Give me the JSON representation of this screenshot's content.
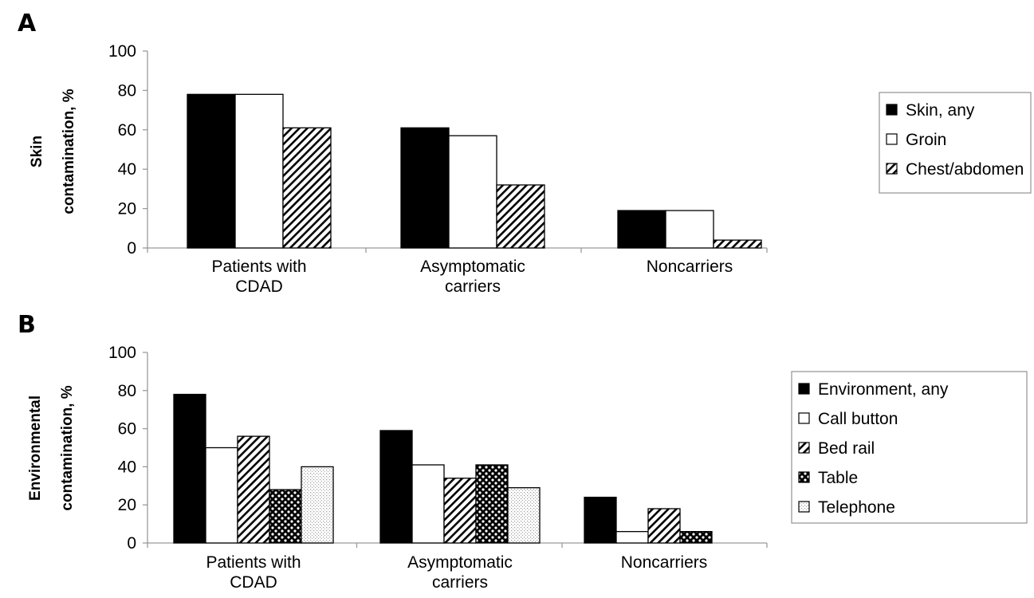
{
  "panels": {
    "a_label": "A",
    "b_label": "B"
  },
  "chart_data": [
    {
      "type": "bar",
      "panel": "A",
      "title": "",
      "xlabel": "",
      "ylabel": "Skin contamination, %",
      "ylabel_lines": [
        "Skin",
        "contamination, %"
      ],
      "ylim": [
        0,
        100
      ],
      "yticks": [
        0,
        20,
        40,
        60,
        80,
        100
      ],
      "grid": false,
      "legend_position": "right",
      "categories": [
        "Patients with CDAD",
        "Asymptomatic carriers",
        "Noncarriers"
      ],
      "category_lines": [
        [
          "Patients with",
          "CDAD"
        ],
        [
          "Asymptomatic",
          "carriers"
        ],
        [
          "Noncarriers"
        ]
      ],
      "series": [
        {
          "name": "Skin, any",
          "pattern": "solid",
          "values": [
            78,
            61,
            19
          ]
        },
        {
          "name": "Groin",
          "pattern": "white",
          "values": [
            78,
            57,
            19
          ]
        },
        {
          "name": "Chest/abdomen",
          "pattern": "diagonal",
          "values": [
            61,
            32,
            4
          ]
        }
      ]
    },
    {
      "type": "bar",
      "panel": "B",
      "title": "",
      "xlabel": "",
      "ylabel": "Environmental contamination, %",
      "ylabel_lines": [
        "Environmental",
        "contamination, %"
      ],
      "ylim": [
        0,
        100
      ],
      "yticks": [
        0,
        20,
        40,
        60,
        80,
        100
      ],
      "grid": false,
      "legend_position": "right",
      "categories": [
        "Patients with CDAD",
        "Asymptomatic carriers",
        "Noncarriers"
      ],
      "category_lines": [
        [
          "Patients with",
          "CDAD"
        ],
        [
          "Asymptomatic",
          "carriers"
        ],
        [
          "Noncarriers"
        ]
      ],
      "series": [
        {
          "name": "Environment, any",
          "pattern": "solid",
          "values": [
            78,
            59,
            24
          ]
        },
        {
          "name": "Call button",
          "pattern": "white",
          "values": [
            50,
            41,
            6
          ]
        },
        {
          "name": "Bed rail",
          "pattern": "diagonal",
          "values": [
            56,
            34,
            18
          ]
        },
        {
          "name": "Table",
          "pattern": "checker",
          "values": [
            28,
            41,
            6
          ]
        },
        {
          "name": "Telephone",
          "pattern": "dotted",
          "values": [
            40,
            29,
            0
          ]
        }
      ]
    }
  ]
}
